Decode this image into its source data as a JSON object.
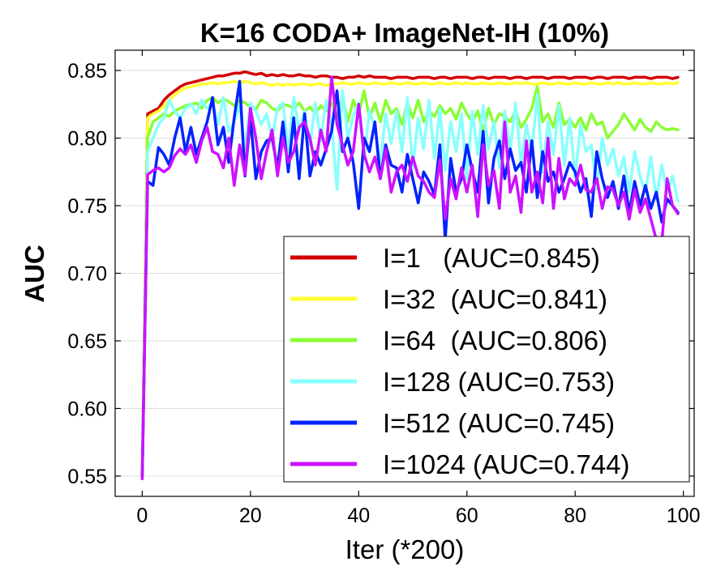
{
  "chart_data": {
    "type": "line",
    "title": "K=16 CODA+ ImageNet-IH (10%)",
    "xlabel": "Iter (*200)",
    "ylabel": "AUC",
    "xlim": [
      -5,
      102
    ],
    "ylim": [
      0.535,
      0.865
    ],
    "xticks": [
      0,
      20,
      40,
      60,
      80,
      100
    ],
    "yticks": [
      0.55,
      0.6,
      0.65,
      0.7,
      0.75,
      0.8,
      0.85
    ],
    "xtick_labels": [
      "0",
      "20",
      "40",
      "60",
      "80",
      "100"
    ],
    "ytick_labels": [
      "0.55",
      "0.60",
      "0.65",
      "0.70",
      "0.75",
      "0.80",
      "0.85"
    ],
    "grid": "horizontal",
    "legend_position": "lower-right",
    "x_start": 0,
    "x_step": 1,
    "series": [
      {
        "name": "I=1",
        "legend_label": "I=1   (AUC=0.845)",
        "color": "#d40000",
        "values": [
          0.55,
          0.818,
          0.82,
          0.822,
          0.828,
          0.832,
          0.835,
          0.838,
          0.84,
          0.841,
          0.842,
          0.843,
          0.844,
          0.845,
          0.846,
          0.846,
          0.847,
          0.848,
          0.848,
          0.849,
          0.848,
          0.847,
          0.848,
          0.846,
          0.847,
          0.846,
          0.847,
          0.846,
          0.846,
          0.847,
          0.846,
          0.846,
          0.845,
          0.846,
          0.846,
          0.845,
          0.845,
          0.844,
          0.845,
          0.845,
          0.846,
          0.845,
          0.846,
          0.845,
          0.845,
          0.845,
          0.844,
          0.845,
          0.845,
          0.845,
          0.844,
          0.845,
          0.845,
          0.845,
          0.844,
          0.845,
          0.845,
          0.844,
          0.845,
          0.845,
          0.845,
          0.844,
          0.845,
          0.845,
          0.844,
          0.845,
          0.845,
          0.845,
          0.844,
          0.845,
          0.845,
          0.844,
          0.845,
          0.845,
          0.845,
          0.844,
          0.845,
          0.845,
          0.845,
          0.844,
          0.845,
          0.845,
          0.845,
          0.844,
          0.845,
          0.845,
          0.844,
          0.845,
          0.845,
          0.845,
          0.844,
          0.845,
          0.845,
          0.845,
          0.844,
          0.845,
          0.845,
          0.845,
          0.844,
          0.845
        ]
      },
      {
        "name": "I=32",
        "legend_label": "I=32  (AUC=0.841)",
        "color": "#ffff33",
        "values": [
          0.55,
          0.815,
          0.818,
          0.82,
          0.824,
          0.828,
          0.832,
          0.835,
          0.837,
          0.838,
          0.839,
          0.84,
          0.84,
          0.841,
          0.84,
          0.841,
          0.841,
          0.842,
          0.841,
          0.842,
          0.841,
          0.84,
          0.841,
          0.84,
          0.839,
          0.84,
          0.839,
          0.84,
          0.839,
          0.84,
          0.84,
          0.839,
          0.84,
          0.84,
          0.839,
          0.84,
          0.84,
          0.841,
          0.84,
          0.84,
          0.841,
          0.84,
          0.84,
          0.841,
          0.84,
          0.84,
          0.841,
          0.84,
          0.84,
          0.841,
          0.84,
          0.84,
          0.841,
          0.84,
          0.84,
          0.841,
          0.84,
          0.84,
          0.841,
          0.84,
          0.841,
          0.84,
          0.84,
          0.841,
          0.84,
          0.84,
          0.841,
          0.84,
          0.84,
          0.841,
          0.84,
          0.841,
          0.84,
          0.84,
          0.841,
          0.84,
          0.84,
          0.841,
          0.84,
          0.84,
          0.841,
          0.84,
          0.84,
          0.841,
          0.84,
          0.84,
          0.841,
          0.84,
          0.841,
          0.84,
          0.84,
          0.841,
          0.84,
          0.84,
          0.841,
          0.84,
          0.84,
          0.841,
          0.84,
          0.841
        ]
      },
      {
        "name": "I=64",
        "legend_label": "I=64  (AUC=0.806)",
        "color": "#88ff33",
        "values": [
          0.55,
          0.8,
          0.812,
          0.815,
          0.818,
          0.816,
          0.82,
          0.822,
          0.824,
          0.825,
          0.826,
          0.822,
          0.828,
          0.83,
          0.826,
          0.829,
          0.827,
          0.824,
          0.828,
          0.826,
          0.823,
          0.821,
          0.828,
          0.826,
          0.822,
          0.82,
          0.825,
          0.824,
          0.822,
          0.826,
          0.82,
          0.823,
          0.818,
          0.824,
          0.82,
          0.826,
          0.815,
          0.83,
          0.812,
          0.828,
          0.818,
          0.835,
          0.815,
          0.826,
          0.812,
          0.828,
          0.818,
          0.822,
          0.81,
          0.826,
          0.815,
          0.828,
          0.812,
          0.82,
          0.816,
          0.824,
          0.818,
          0.822,
          0.814,
          0.826,
          0.818,
          0.812,
          0.82,
          0.805,
          0.822,
          0.81,
          0.818,
          0.816,
          0.812,
          0.82,
          0.808,
          0.814,
          0.822,
          0.838,
          0.812,
          0.818,
          0.808,
          0.826,
          0.81,
          0.814,
          0.808,
          0.815,
          0.806,
          0.818,
          0.81,
          0.812,
          0.8,
          0.805,
          0.81,
          0.818,
          0.812,
          0.806,
          0.814,
          0.808,
          0.805,
          0.812,
          0.808,
          0.806,
          0.807,
          0.806
        ]
      },
      {
        "name": "I=128",
        "legend_label": "I=128 (AUC=0.753)",
        "color": "#88ffff",
        "values": [
          0.55,
          0.79,
          0.8,
          0.81,
          0.815,
          0.828,
          0.82,
          0.815,
          0.822,
          0.825,
          0.818,
          0.828,
          0.822,
          0.826,
          0.81,
          0.83,
          0.805,
          0.812,
          0.825,
          0.792,
          0.826,
          0.82,
          0.81,
          0.818,
          0.8,
          0.822,
          0.826,
          0.79,
          0.83,
          0.805,
          0.82,
          0.795,
          0.826,
          0.798,
          0.828,
          0.81,
          0.762,
          0.835,
          0.8,
          0.816,
          0.826,
          0.785,
          0.82,
          0.808,
          0.78,
          0.818,
          0.796,
          0.82,
          0.79,
          0.83,
          0.778,
          0.815,
          0.792,
          0.828,
          0.785,
          0.822,
          0.776,
          0.812,
          0.79,
          0.818,
          0.77,
          0.82,
          0.788,
          0.824,
          0.792,
          0.812,
          0.778,
          0.82,
          0.79,
          0.826,
          0.78,
          0.81,
          0.79,
          0.832,
          0.775,
          0.812,
          0.788,
          0.824,
          0.78,
          0.815,
          0.77,
          0.81,
          0.79,
          0.795,
          0.762,
          0.8,
          0.78,
          0.792,
          0.772,
          0.786,
          0.76,
          0.79,
          0.772,
          0.76,
          0.786,
          0.755,
          0.78,
          0.76,
          0.772,
          0.753
        ]
      },
      {
        "name": "I=512",
        "legend_label": "I=512 (AUC=0.745)",
        "color": "#0022ff",
        "values": [
          0.55,
          0.768,
          0.765,
          0.793,
          0.788,
          0.78,
          0.8,
          0.815,
          0.79,
          0.808,
          0.788,
          0.8,
          0.812,
          0.83,
          0.795,
          0.808,
          0.782,
          0.815,
          0.842,
          0.772,
          0.815,
          0.77,
          0.79,
          0.798,
          0.8,
          0.778,
          0.812,
          0.775,
          0.815,
          0.77,
          0.818,
          0.772,
          0.79,
          0.78,
          0.792,
          0.805,
          0.835,
          0.79,
          0.8,
          0.782,
          0.748,
          0.8,
          0.79,
          0.812,
          0.77,
          0.795,
          0.78,
          0.778,
          0.76,
          0.788,
          0.77,
          0.752,
          0.775,
          0.768,
          0.758,
          0.795,
          0.725,
          0.785,
          0.76,
          0.77,
          0.795,
          0.776,
          0.76,
          0.805,
          0.752,
          0.785,
          0.798,
          0.77,
          0.792,
          0.776,
          0.782,
          0.76,
          0.798,
          0.756,
          0.79,
          0.768,
          0.775,
          0.76,
          0.77,
          0.782,
          0.775,
          0.76,
          0.77,
          0.742,
          0.79,
          0.77,
          0.756,
          0.768,
          0.748,
          0.772,
          0.745,
          0.768,
          0.75,
          0.765,
          0.748,
          0.76,
          0.738,
          0.755,
          0.75,
          0.745
        ]
      },
      {
        "name": "I=1024",
        "legend_label": "I=1024 (AUC=0.744)",
        "color": "#cc11ff",
        "values": [
          0.548,
          0.773,
          0.776,
          0.778,
          0.775,
          0.778,
          0.787,
          0.792,
          0.788,
          0.795,
          0.782,
          0.798,
          0.808,
          0.79,
          0.788,
          0.778,
          0.8,
          0.765,
          0.795,
          0.773,
          0.822,
          0.8,
          0.77,
          0.79,
          0.806,
          0.772,
          0.8,
          0.782,
          0.79,
          0.808,
          0.812,
          0.8,
          0.78,
          0.806,
          0.79,
          0.845,
          0.81,
          0.795,
          0.78,
          0.79,
          0.825,
          0.788,
          0.775,
          0.786,
          0.77,
          0.792,
          0.76,
          0.775,
          0.78,
          0.768,
          0.786,
          0.772,
          0.768,
          0.76,
          0.756,
          0.784,
          0.74,
          0.77,
          0.755,
          0.778,
          0.76,
          0.78,
          0.742,
          0.795,
          0.765,
          0.776,
          0.748,
          0.812,
          0.76,
          0.772,
          0.745,
          0.798,
          0.76,
          0.775,
          0.752,
          0.8,
          0.748,
          0.785,
          0.755,
          0.77,
          0.765,
          0.78,
          0.762,
          0.76,
          0.77,
          0.748,
          0.764,
          0.762,
          0.75,
          0.76,
          0.74,
          0.762,
          0.745,
          0.755,
          0.74,
          0.725,
          0.722,
          0.77,
          0.75,
          0.744
        ]
      }
    ]
  }
}
